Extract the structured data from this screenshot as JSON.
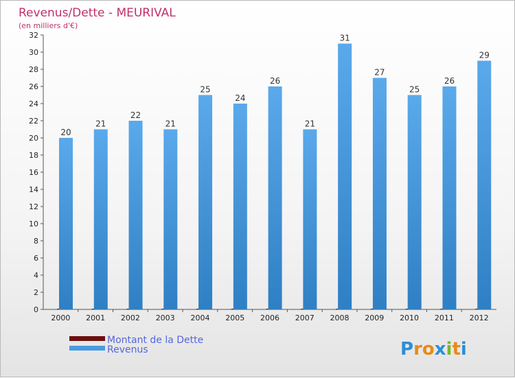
{
  "chart_data": {
    "type": "bar",
    "title": "Revenus/Dette - MEURIVAL",
    "subtitle": "(en milliers d'€)",
    "categories": [
      "2000",
      "2001",
      "2002",
      "2003",
      "2004",
      "2005",
      "2006",
      "2007",
      "2008",
      "2009",
      "2010",
      "2011",
      "2012"
    ],
    "series": [
      {
        "name": "Montant de la Dette",
        "color": "#6b0f0f",
        "values": [
          0,
          0,
          0,
          0,
          0,
          0,
          0,
          0,
          0,
          0,
          0,
          0,
          0
        ]
      },
      {
        "name": "Revenus",
        "color": "#4a9be0",
        "values": [
          20,
          21,
          22,
          21,
          25,
          24,
          26,
          21,
          31,
          27,
          25,
          26,
          29
        ]
      }
    ],
    "ylim": [
      0,
      32
    ],
    "ytick_step": 2,
    "grid": false,
    "legend_position": "bottom-left"
  },
  "logo": {
    "text": "Proxiti",
    "letters": [
      "P",
      "r",
      "o",
      "x",
      "i",
      "t",
      "i"
    ],
    "colors": [
      "#2b8fd6",
      "#e88a1a",
      "#e88a1a",
      "#2b8fd6",
      "#7ab82a",
      "#e88a1a",
      "#2b8fd6"
    ]
  }
}
